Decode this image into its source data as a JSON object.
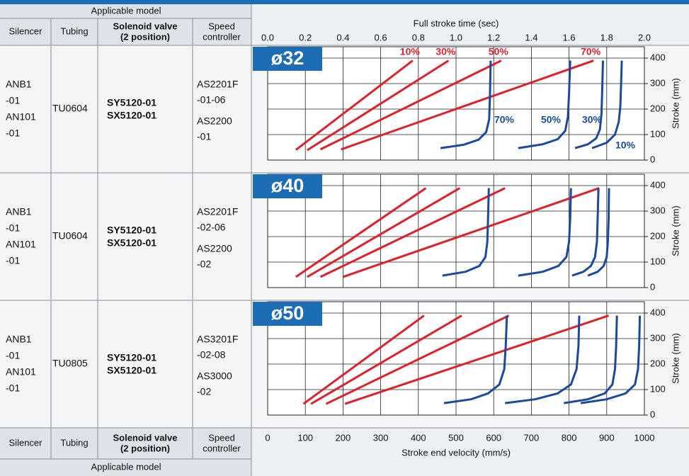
{
  "table": {
    "group_label": "Applicable model",
    "columns": [
      [
        "Silencer"
      ],
      [
        "Tubing"
      ],
      [
        "Solenoid valve",
        "(2 position)"
      ],
      [
        "Speed",
        "controller"
      ]
    ],
    "rows": [
      {
        "silencer": [
          "ANB1",
          "-01",
          "AN101",
          "-01"
        ],
        "tubing": [
          "TU0604"
        ],
        "solenoid_valve": [
          "SY5120-01",
          "SX5120-01"
        ],
        "speed_controller": [
          "AS2201F",
          "-01-06",
          "AS2200",
          "-01"
        ]
      },
      {
        "silencer": [
          "ANB1",
          "-01",
          "AN101",
          "-01"
        ],
        "tubing": [
          "TU0604"
        ],
        "solenoid_valve": [
          "SY5120-01",
          "SX5120-01"
        ],
        "speed_controller": [
          "AS2201F",
          "-02-06",
          "AS2200",
          "-02"
        ]
      },
      {
        "silencer": [
          "ANB1",
          "-01",
          "AN101",
          "-01"
        ],
        "tubing": [
          "TU0805"
        ],
        "solenoid_valve": [
          "SY5120-01",
          "SX5120-01"
        ],
        "speed_controller": [
          "AS3201F",
          "-02-08",
          "AS3000",
          "-02"
        ]
      }
    ]
  },
  "chart_data": [
    {
      "type": "line",
      "title": "ø32",
      "xlabel": "Full stroke time (sec)",
      "xlim": [
        0,
        2
      ],
      "xticks": [
        {
          "value": 0,
          "label": "0.0"
        },
        0.2,
        0.4,
        0.6,
        0.8,
        {
          "value": 1,
          "label": "1.0"
        },
        1.2,
        1.4,
        1.6,
        1.8,
        {
          "value": 2,
          "label": "2.0"
        }
      ],
      "ylabel": "Stroke (mm)",
      "ylim": [
        0,
        400
      ],
      "yticks": [
        0,
        100,
        200,
        300,
        400
      ],
      "grid": true,
      "series": [
        {
          "name": "10%",
          "color": "#e0202a",
          "x": [
            0.15,
            0.77
          ],
          "y": [
            40,
            390
          ]
        },
        {
          "name": "30%",
          "color": "#e0202a",
          "x": [
            0.21,
            0.96
          ],
          "y": [
            39,
            390
          ]
        },
        {
          "name": "50%",
          "color": "#e0202a",
          "x": [
            0.28,
            1.24
          ],
          "y": [
            42,
            390
          ]
        },
        {
          "name": "70%",
          "color": "#e0202a",
          "x": [
            0.39,
            1.73
          ],
          "y": [
            42,
            390
          ]
        },
        {
          "name": "70%",
          "color": "#1b4a9c",
          "axis": "x2",
          "x": [
            459,
            520,
            560,
            580,
            588,
            590,
            592
          ],
          "y": [
            47,
            60,
            80,
            110,
            160,
            250,
            390
          ]
        },
        {
          "name": "50%",
          "color": "#1b4a9c",
          "axis": "x2",
          "x": [
            665,
            730,
            770,
            790,
            797,
            800,
            803
          ],
          "y": [
            47,
            62,
            82,
            115,
            170,
            260,
            390
          ]
        },
        {
          "name": "30%",
          "color": "#1b4a9c",
          "axis": "x2",
          "x": [
            816,
            850,
            872,
            882,
            886,
            888,
            890
          ],
          "y": [
            47,
            62,
            85,
            120,
            180,
            270,
            390
          ]
        },
        {
          "name": "10%",
          "color": "#1b4a9c",
          "axis": "x2",
          "x": [
            861,
            900,
            922,
            932,
            936,
            938,
            940
          ],
          "y": [
            47,
            68,
            100,
            150,
            210,
            290,
            390
          ]
        }
      ]
    },
    {
      "type": "line",
      "title": "ø40",
      "ylabel": "Stroke (mm)",
      "ylim": [
        0,
        400
      ],
      "yticks": [
        0,
        100,
        200,
        300,
        400
      ],
      "grid": true,
      "series": [
        {
          "color": "#e0202a",
          "x": [
            0.15,
            0.84
          ],
          "y": [
            42,
            390
          ]
        },
        {
          "color": "#e0202a",
          "x": [
            0.21,
            1.02
          ],
          "y": [
            42,
            390
          ]
        },
        {
          "color": "#e0202a",
          "x": [
            0.28,
            1.26
          ],
          "y": [
            42,
            390
          ]
        },
        {
          "color": "#e0202a",
          "x": [
            0.4,
            1.76
          ],
          "y": [
            42,
            390
          ]
        },
        {
          "color": "#1b4a9c",
          "axis": "x2",
          "x": [
            464,
            525,
            562,
            578,
            583,
            585,
            587
          ],
          "y": [
            47,
            62,
            85,
            120,
            180,
            270,
            390
          ]
        },
        {
          "color": "#1b4a9c",
          "axis": "x2",
          "x": [
            665,
            730,
            772,
            793,
            800,
            803,
            805
          ],
          "y": [
            47,
            62,
            85,
            120,
            180,
            270,
            390
          ]
        },
        {
          "color": "#1b4a9c",
          "axis": "x2",
          "x": [
            808,
            838,
            858,
            869,
            874,
            876,
            878
          ],
          "y": [
            47,
            62,
            85,
            120,
            180,
            270,
            390
          ]
        },
        {
          "color": "#1b4a9c",
          "axis": "x2",
          "x": [
            850,
            876,
            892,
            900,
            903,
            905,
            906
          ],
          "y": [
            47,
            62,
            85,
            120,
            180,
            270,
            390
          ]
        }
      ]
    },
    {
      "type": "line",
      "title": "ø50",
      "ylabel": "Stroke (mm)",
      "ylim": [
        0,
        400
      ],
      "yticks": [
        0,
        100,
        200,
        300,
        400
      ],
      "grid": true,
      "x2label": "Stroke end velocity (mm/s)",
      "x2lim": [
        0,
        1000
      ],
      "x2ticks": [
        0,
        100,
        200,
        300,
        400,
        500,
        600,
        700,
        800,
        900,
        1000
      ],
      "series": [
        {
          "color": "#e0202a",
          "x": [
            0.19,
            0.83
          ],
          "y": [
            44,
            390
          ]
        },
        {
          "color": "#e0202a",
          "x": [
            0.23,
            1.03
          ],
          "y": [
            44,
            390
          ]
        },
        {
          "color": "#e0202a",
          "x": [
            0.31,
            1.28
          ],
          "y": [
            44,
            390
          ]
        },
        {
          "color": "#e0202a",
          "x": [
            0.41,
            1.81
          ],
          "y": [
            44,
            390
          ]
        },
        {
          "color": "#1b4a9c",
          "axis": "x2",
          "x": [
            468,
            540,
            585,
            615,
            628,
            632,
            635
          ],
          "y": [
            47,
            62,
            85,
            120,
            180,
            270,
            390
          ]
        },
        {
          "color": "#1b4a9c",
          "axis": "x2",
          "x": [
            630,
            710,
            770,
            805,
            820,
            825,
            827
          ],
          "y": [
            47,
            62,
            85,
            120,
            180,
            270,
            390
          ]
        },
        {
          "color": "#1b4a9c",
          "axis": "x2",
          "x": [
            786,
            850,
            895,
            915,
            922,
            925,
            927
          ],
          "y": [
            47,
            62,
            85,
            120,
            180,
            270,
            390
          ]
        },
        {
          "color": "#1b4a9c",
          "axis": "x2",
          "x": [
            831,
            900,
            950,
            975,
            983,
            986,
            988
          ],
          "y": [
            47,
            62,
            85,
            120,
            180,
            270,
            390
          ]
        }
      ]
    }
  ]
}
